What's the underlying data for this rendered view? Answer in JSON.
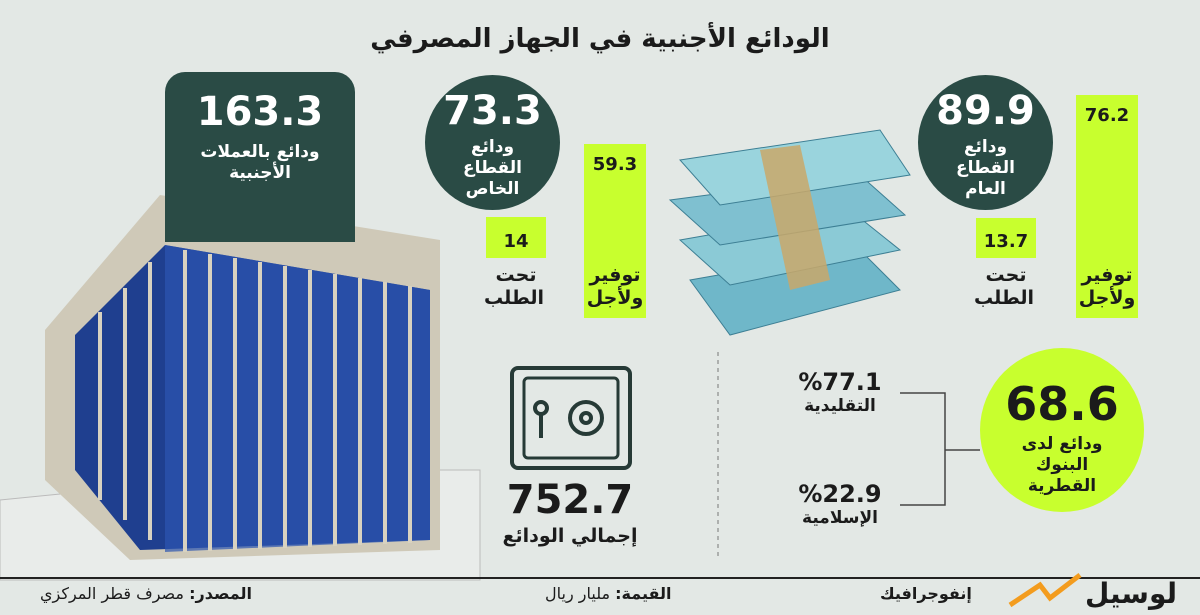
{
  "title": "الودائع الأجنبية في الجهاز المصرفي",
  "foreign_currency": {
    "value": 163.3,
    "label": "ودائع بالعملات الأجنبية"
  },
  "private_sector": {
    "value": 73.3,
    "label": "ودائع القطاع الخاص",
    "bars": [
      {
        "label": "توفير ولأجل",
        "value": 59.3
      },
      {
        "label": "تحت الطلب",
        "value": 14
      }
    ]
  },
  "public_sector": {
    "value": 89.9,
    "label": "ودائع القطاع العام",
    "bars": [
      {
        "label": "توفير ولأجل",
        "value": 76.2
      },
      {
        "label": "تحت الطلب",
        "value": 13.7
      }
    ]
  },
  "total": {
    "value": 752.7,
    "label": "إجمالي الودائع"
  },
  "qatari_banks": {
    "value": 68.6,
    "label": "ودائع لدى البنوك القطرية",
    "split": [
      {
        "value": "%77.1",
        "label": "التقليدية"
      },
      {
        "value": "%22.9",
        "label": "الإسلامية"
      }
    ]
  },
  "footer": {
    "source_label": "المصدر:",
    "source": "مصرف قطر المركزي",
    "unit_label": "القيمة:",
    "unit": "مليار ريال",
    "brand": "لوسيل",
    "section": "إنفوجرافيك"
  }
}
